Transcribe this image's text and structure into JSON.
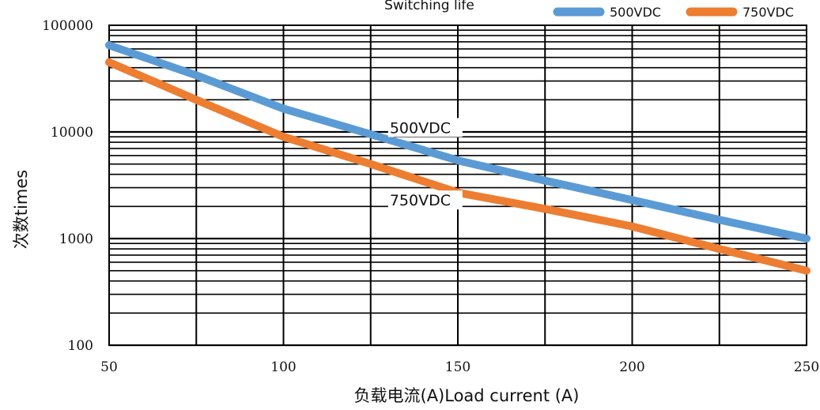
{
  "chart_data": {
    "type": "line",
    "title": "Switching life",
    "xlabel": "负载电流(A)Load current  (A)",
    "ylabel": "次数times",
    "x_scale": "linear",
    "y_scale": "log",
    "xlim": [
      50,
      250
    ],
    "ylim": [
      100,
      100000
    ],
    "x_ticks": [
      50,
      100,
      150,
      200,
      250
    ],
    "x_tick_labels": [
      "50",
      "100",
      "150",
      "200",
      "250"
    ],
    "y_ticks": [
      100,
      1000,
      10000,
      100000
    ],
    "y_tick_labels": [
      "100",
      "1000",
      "10000",
      "100000"
    ],
    "grid": true,
    "legend_position": "top-right",
    "series": [
      {
        "name": "500VDC",
        "color": "#5b9bd5",
        "x": [
          50,
          75,
          100,
          125,
          150,
          175,
          200,
          225,
          250
        ],
        "y": [
          65000,
          34000,
          16500,
          9500,
          5400,
          3500,
          2300,
          1500,
          1000
        ]
      },
      {
        "name": "750VDC",
        "color": "#ed7d31",
        "x": [
          50,
          75,
          100,
          125,
          150,
          175,
          200,
          225,
          250
        ],
        "y": [
          45000,
          20000,
          9000,
          5000,
          2700,
          1900,
          1300,
          800,
          500
        ]
      }
    ],
    "annotations": [
      {
        "text": "500VDC",
        "x": 135,
        "y": 11000
      },
      {
        "text": "750VDC",
        "x": 135,
        "y": 2300
      }
    ]
  }
}
